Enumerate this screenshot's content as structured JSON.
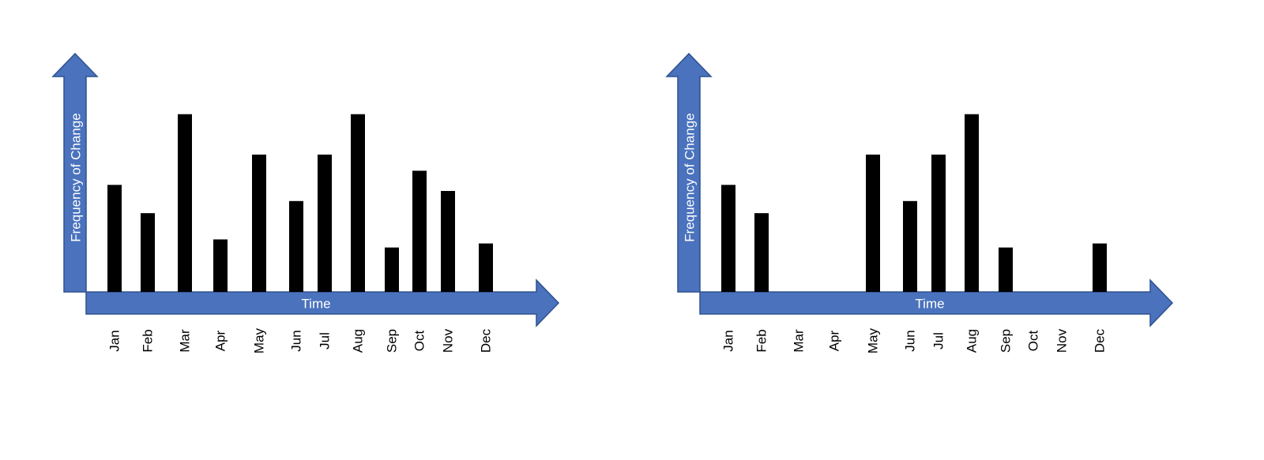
{
  "colors": {
    "axis_fill": "#4a72bd",
    "axis_stroke": "#2f528f",
    "bar": "#000000",
    "label_on_axis": "#ffffff"
  },
  "chart_data": [
    {
      "type": "bar",
      "categories": [
        "Jan",
        "Feb",
        "Mar",
        "Apr",
        "May",
        "Jun",
        "Jul",
        "Aug",
        "Sep",
        "Oct",
        "Nov",
        "Dec"
      ],
      "series": [
        {
          "values": [
            5.3,
            3.9,
            8.8,
            2.6,
            6.8,
            4.5,
            6.8,
            8.8,
            2.2,
            6.0,
            5.0,
            2.4
          ]
        }
      ],
      "xlabel": "Time",
      "ylabel": "Frequency of Change",
      "ylim": [
        0,
        10
      ],
      "grid": false,
      "axes_style": "block-arrows"
    },
    {
      "type": "bar",
      "categories": [
        "Jan",
        "Feb",
        "Mar",
        "Apr",
        "May",
        "Jun",
        "Jul",
        "Aug",
        "Sep",
        "Oct",
        "Nov",
        "Dec"
      ],
      "series": [
        {
          "values": [
            5.3,
            3.9,
            0,
            0,
            6.8,
            4.5,
            6.8,
            8.8,
            2.2,
            0,
            0,
            2.4
          ]
        }
      ],
      "xlabel": "Time",
      "ylabel": "Frequency of Change",
      "ylim": [
        0,
        10
      ],
      "grid": false,
      "axes_style": "block-arrows"
    }
  ]
}
